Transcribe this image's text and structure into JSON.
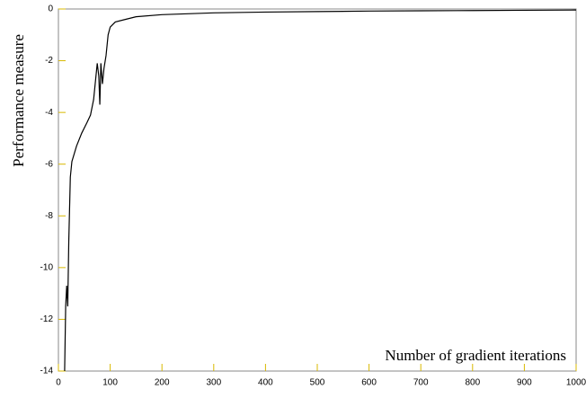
{
  "chart_data": {
    "type": "line",
    "xlabel": "Number of gradient iterations",
    "ylabel": "Performance measure",
    "x": [
      12,
      14,
      16,
      18,
      20,
      23,
      26,
      35,
      45,
      55,
      62,
      68,
      72,
      75,
      78,
      80,
      82,
      85,
      88,
      92,
      96,
      100,
      110,
      130,
      150,
      200,
      300,
      400,
      500,
      600,
      700,
      800,
      900,
      1000
    ],
    "series": [
      {
        "color": "#000000",
        "values": [
          -14,
          -11.5,
          -10.7,
          -11.5,
          -9,
          -6.5,
          -5.9,
          -5.3,
          -4.8,
          -4.4,
          -4.1,
          -3.5,
          -2.7,
          -2.1,
          -2.6,
          -3.7,
          -2.1,
          -2.9,
          -2.3,
          -1.8,
          -1.0,
          -0.7,
          -0.5,
          -0.4,
          -0.3,
          -0.22,
          -0.15,
          -0.12,
          -0.1,
          -0.08,
          -0.07,
          -0.06,
          -0.05,
          -0.04
        ]
      }
    ],
    "xlim": [
      0,
      1000
    ],
    "xticks": [
      0,
      100,
      200,
      300,
      400,
      500,
      600,
      700,
      800,
      900,
      1000
    ],
    "ylim": [
      -14,
      0
    ],
    "yticks": [
      -14,
      -12,
      -10,
      -8,
      -6,
      -4,
      -2,
      0
    ],
    "tick_color": "#d8b800",
    "frame_color": "#888888"
  }
}
